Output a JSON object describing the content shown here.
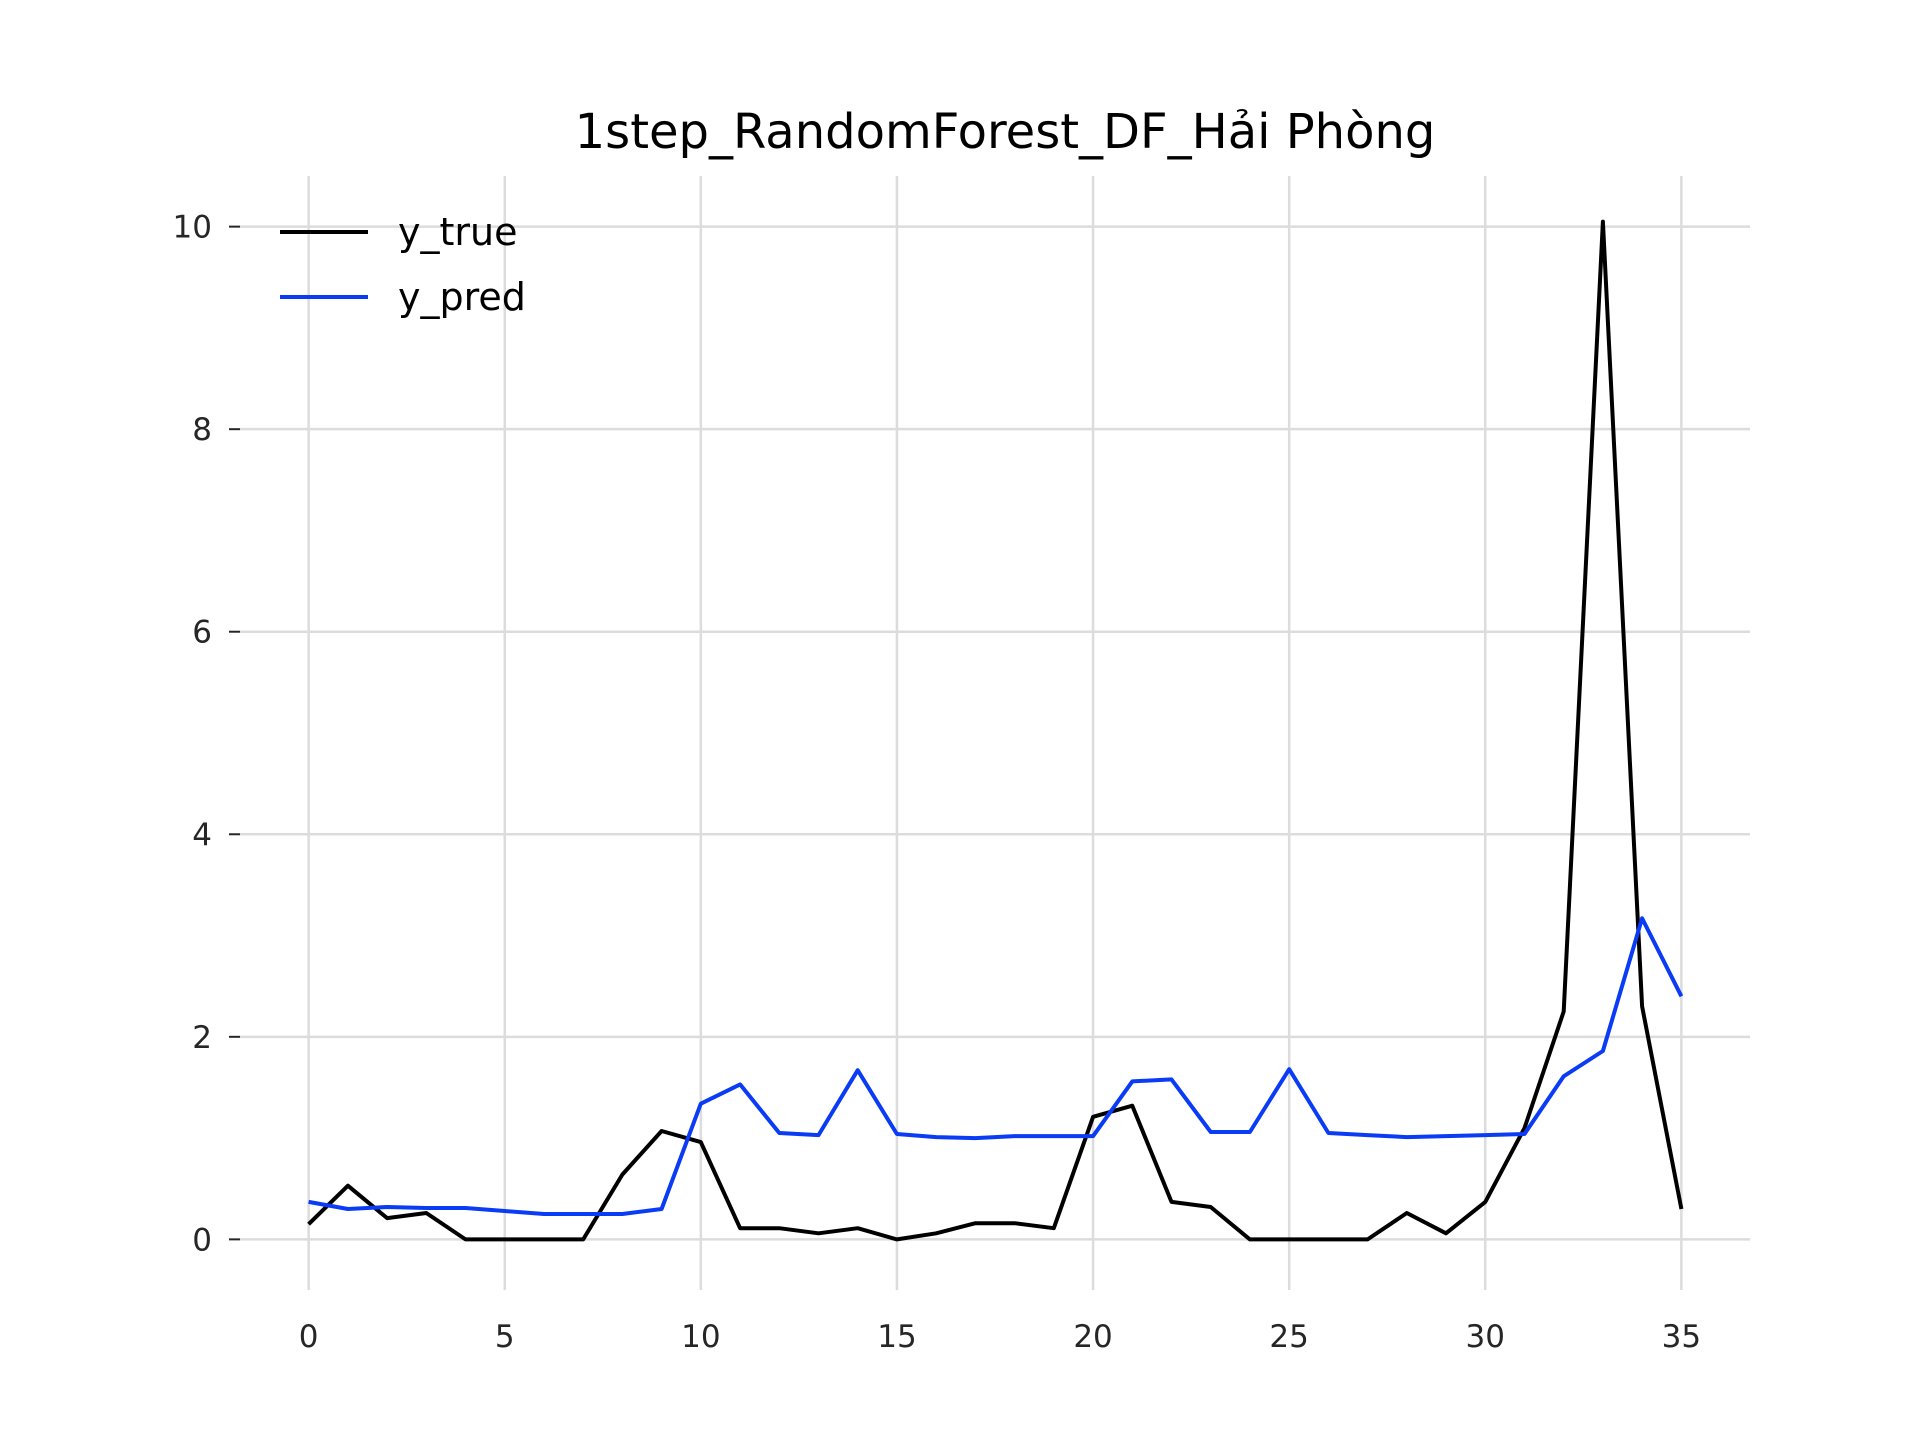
{
  "chart_data": {
    "type": "line",
    "title": "1step_RandomForest_DF_Hải Phòng",
    "xlabel": "",
    "ylabel": "",
    "xlim": [
      -1.75,
      36.75
    ],
    "ylim": [
      -0.5,
      10.5
    ],
    "xticks": [
      0,
      5,
      10,
      15,
      20,
      25,
      30,
      35
    ],
    "yticks": [
      0,
      2,
      4,
      6,
      8,
      10
    ],
    "grid": true,
    "legend_position": "top-left",
    "x": [
      0,
      1,
      2,
      3,
      4,
      5,
      6,
      7,
      8,
      9,
      10,
      11,
      12,
      13,
      14,
      15,
      16,
      17,
      18,
      19,
      20,
      21,
      22,
      23,
      24,
      25,
      26,
      27,
      28,
      29,
      30,
      31,
      32,
      33,
      34,
      35
    ],
    "series": [
      {
        "name": "y_true",
        "color": "#000000",
        "values": [
          0.15,
          0.53,
          0.21,
          0.26,
          0.0,
          0.0,
          0.0,
          0.0,
          0.64,
          1.07,
          0.96,
          0.11,
          0.11,
          0.06,
          0.11,
          0.0,
          0.06,
          0.16,
          0.16,
          0.11,
          1.21,
          1.32,
          0.37,
          0.32,
          0.0,
          0.0,
          0.0,
          0.0,
          0.26,
          0.06,
          0.37,
          1.1,
          2.25,
          10.05,
          2.3,
          0.3
        ]
      },
      {
        "name": "y_pred",
        "color": "#0a3bf5",
        "values": [
          0.37,
          0.3,
          0.32,
          0.31,
          0.31,
          0.28,
          0.25,
          0.25,
          0.25,
          0.3,
          1.34,
          1.53,
          1.05,
          1.03,
          1.67,
          1.04,
          1.01,
          1.0,
          1.02,
          1.02,
          1.02,
          1.56,
          1.58,
          1.06,
          1.06,
          1.68,
          1.05,
          1.03,
          1.01,
          1.02,
          1.03,
          1.04,
          1.61,
          1.86,
          3.17,
          2.4
        ]
      }
    ]
  }
}
